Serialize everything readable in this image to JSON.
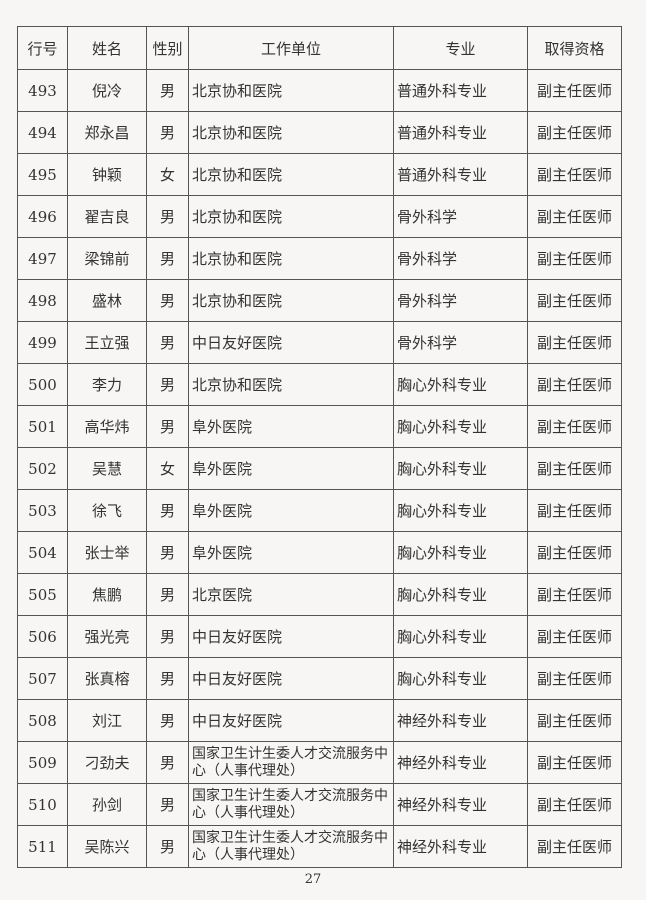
{
  "table": {
    "headers": [
      "行号",
      "姓名",
      "性别",
      "工作单位",
      "专业",
      "取得资格"
    ],
    "rows": [
      [
        "493",
        "倪冷",
        "男",
        "北京协和医院",
        "普通外科专业",
        "副主任医师"
      ],
      [
        "494",
        "郑永昌",
        "男",
        "北京协和医院",
        "普通外科专业",
        "副主任医师"
      ],
      [
        "495",
        "钟颖",
        "女",
        "北京协和医院",
        "普通外科专业",
        "副主任医师"
      ],
      [
        "496",
        "翟吉良",
        "男",
        "北京协和医院",
        "骨外科学",
        "副主任医师"
      ],
      [
        "497",
        "梁锦前",
        "男",
        "北京协和医院",
        "骨外科学",
        "副主任医师"
      ],
      [
        "498",
        "盛林",
        "男",
        "北京协和医院",
        "骨外科学",
        "副主任医师"
      ],
      [
        "499",
        "王立强",
        "男",
        "中日友好医院",
        "骨外科学",
        "副主任医师"
      ],
      [
        "500",
        "李力",
        "男",
        "北京协和医院",
        "胸心外科专业",
        "副主任医师"
      ],
      [
        "501",
        "高华炜",
        "男",
        "阜外医院",
        "胸心外科专业",
        "副主任医师"
      ],
      [
        "502",
        "吴慧",
        "女",
        "阜外医院",
        "胸心外科专业",
        "副主任医师"
      ],
      [
        "503",
        "徐飞",
        "男",
        "阜外医院",
        "胸心外科专业",
        "副主任医师"
      ],
      [
        "504",
        "张士举",
        "男",
        "阜外医院",
        "胸心外科专业",
        "副主任医师"
      ],
      [
        "505",
        "焦鹏",
        "男",
        "北京医院",
        "胸心外科专业",
        "副主任医师"
      ],
      [
        "506",
        "强光亮",
        "男",
        "中日友好医院",
        "胸心外科专业",
        "副主任医师"
      ],
      [
        "507",
        "张真榕",
        "男",
        "中日友好医院",
        "胸心外科专业",
        "副主任医师"
      ],
      [
        "508",
        "刘江",
        "男",
        "中日友好医院",
        "神经外科专业",
        "副主任医师"
      ],
      [
        "509",
        "刁劲夫",
        "男",
        "国家卫生计生委人才交流服务中心（人事代理处）",
        "神经外科专业",
        "副主任医师"
      ],
      [
        "510",
        "孙剑",
        "男",
        "国家卫生计生委人才交流服务中心（人事代理处）",
        "神经外科专业",
        "副主任医师"
      ],
      [
        "511",
        "吴陈兴",
        "男",
        "国家卫生计生委人才交流服务中心（人事代理处）",
        "神经外科专业",
        "副主任医师"
      ]
    ]
  },
  "page_number": "27"
}
